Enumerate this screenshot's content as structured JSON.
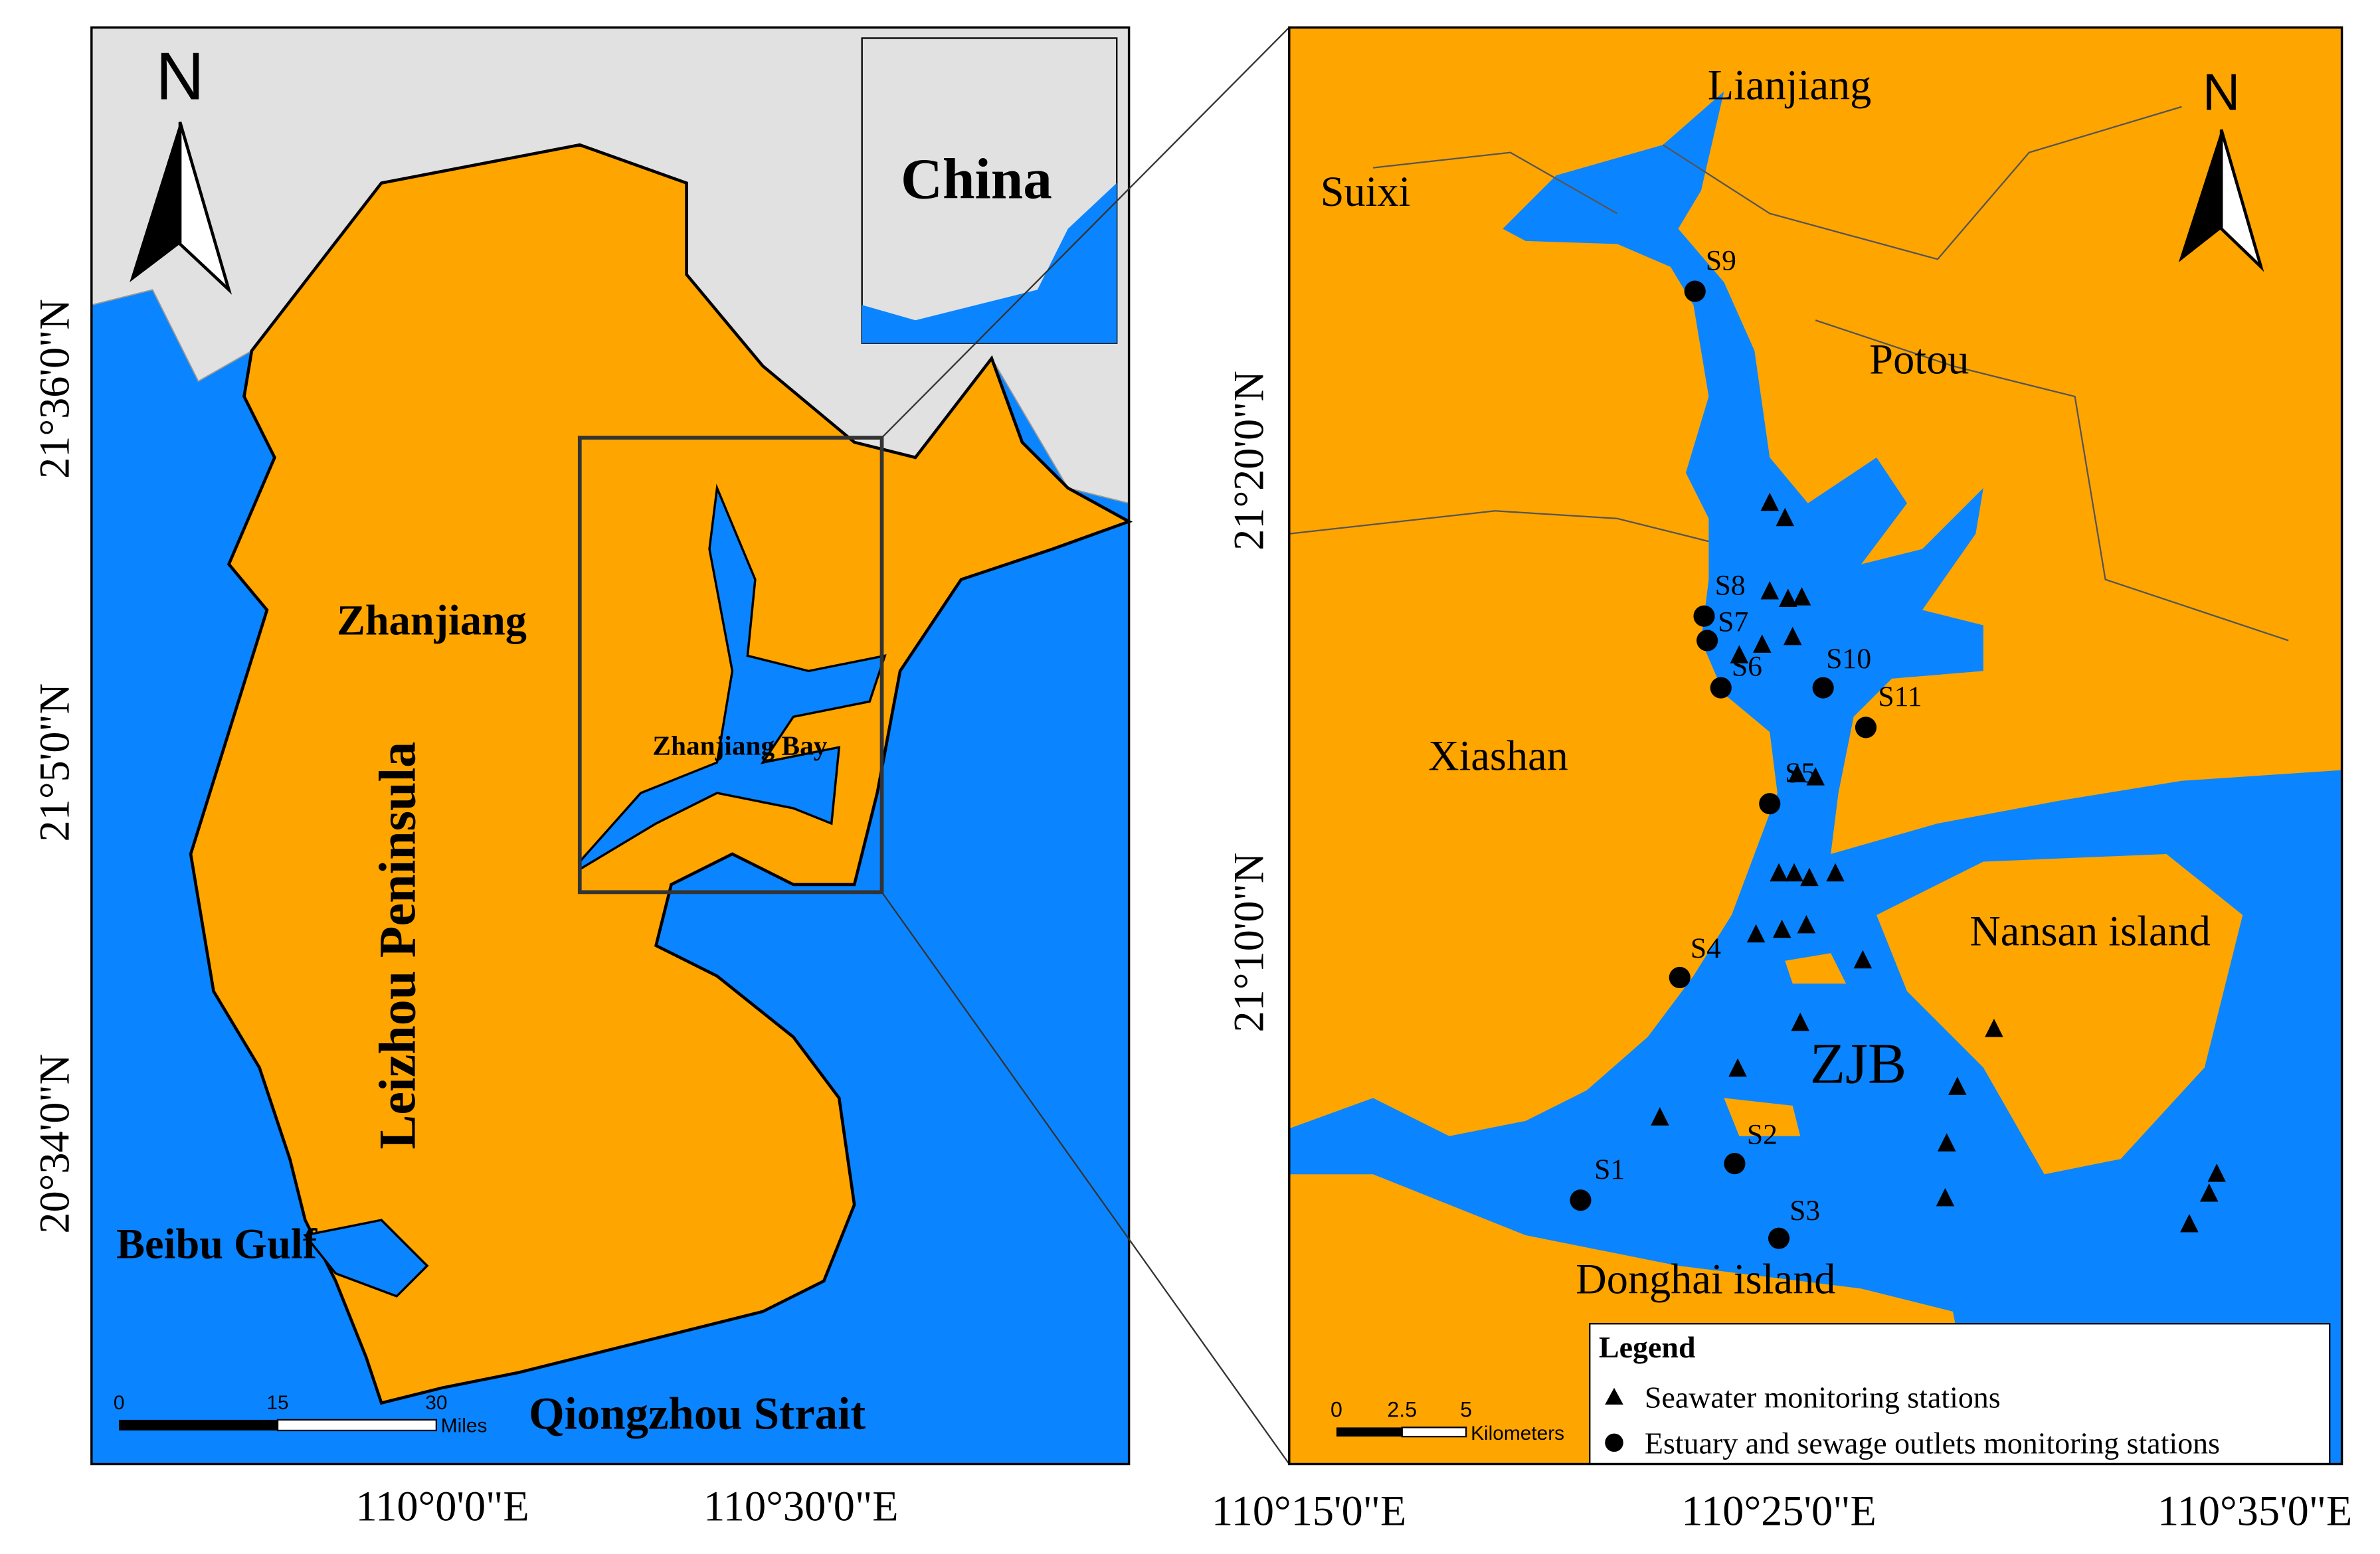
{
  "left_map": {
    "north": "N",
    "inset_label": "China",
    "places": [
      "Zhanjiang",
      "Leizhou Peninsula",
      "Zhanjiang Bay",
      "Beibu Gulf",
      "Qiongzhou Strait"
    ],
    "lat_labels": [
      "21°36'0\"N",
      "21°5'0\"N",
      "20°34'0\"N"
    ],
    "lon_labels": [
      "110°0'0\"E",
      "110°30'0\"E"
    ],
    "scale": {
      "ticks": [
        "0",
        "15",
        "30"
      ],
      "unit": "Miles"
    }
  },
  "right_map": {
    "north": "N",
    "places": [
      "Lianjiang",
      "Suixi",
      "Potou",
      "Xiashan",
      "Nansan island",
      "ZJB",
      "Donghai island"
    ],
    "stations": [
      "S1",
      "S2",
      "S3",
      "S4",
      "S5",
      "S6",
      "S7",
      "S8",
      "S9",
      "S10",
      "S11"
    ],
    "lat_labels": [
      "21°20'0\"N",
      "21°10'0\"N"
    ],
    "lon_labels": [
      "110°15'0\"E",
      "110°25'0\"E",
      "110°35'0\"E"
    ],
    "scale": {
      "ticks": [
        "0",
        "2.5",
        "5"
      ],
      "unit": "Kilometers"
    },
    "legend": {
      "title": "Legend",
      "items": [
        "Seawater monitoring stations",
        "Estuary and sewage outlets monitoring stations"
      ]
    }
  }
}
